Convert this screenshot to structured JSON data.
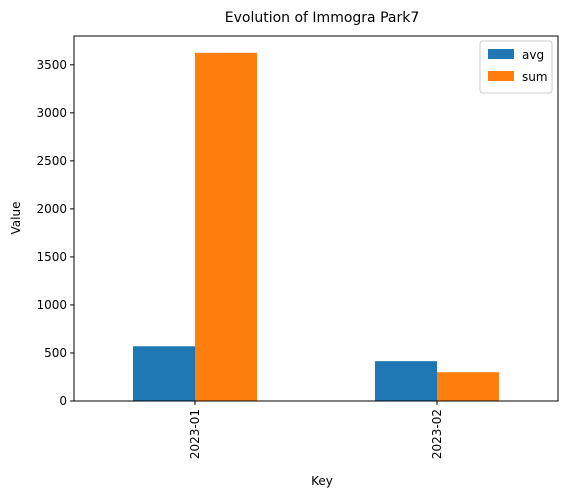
{
  "chart_data": {
    "type": "bar",
    "title": "Evolution of Immogra Park7",
    "xlabel": "Key",
    "ylabel": "Value",
    "categories": [
      "2023-01",
      "2023-02"
    ],
    "series": [
      {
        "name": "avg",
        "color": "#1f77b4",
        "values": [
          570,
          415
        ]
      },
      {
        "name": "sum",
        "color": "#ff7f0e",
        "values": [
          3625,
          300
        ]
      }
    ],
    "ylim": [
      0,
      3800
    ],
    "yticks": [
      0,
      500,
      1000,
      1500,
      2000,
      2500,
      3000,
      3500
    ],
    "legend_position": "top-right",
    "grid": false
  }
}
